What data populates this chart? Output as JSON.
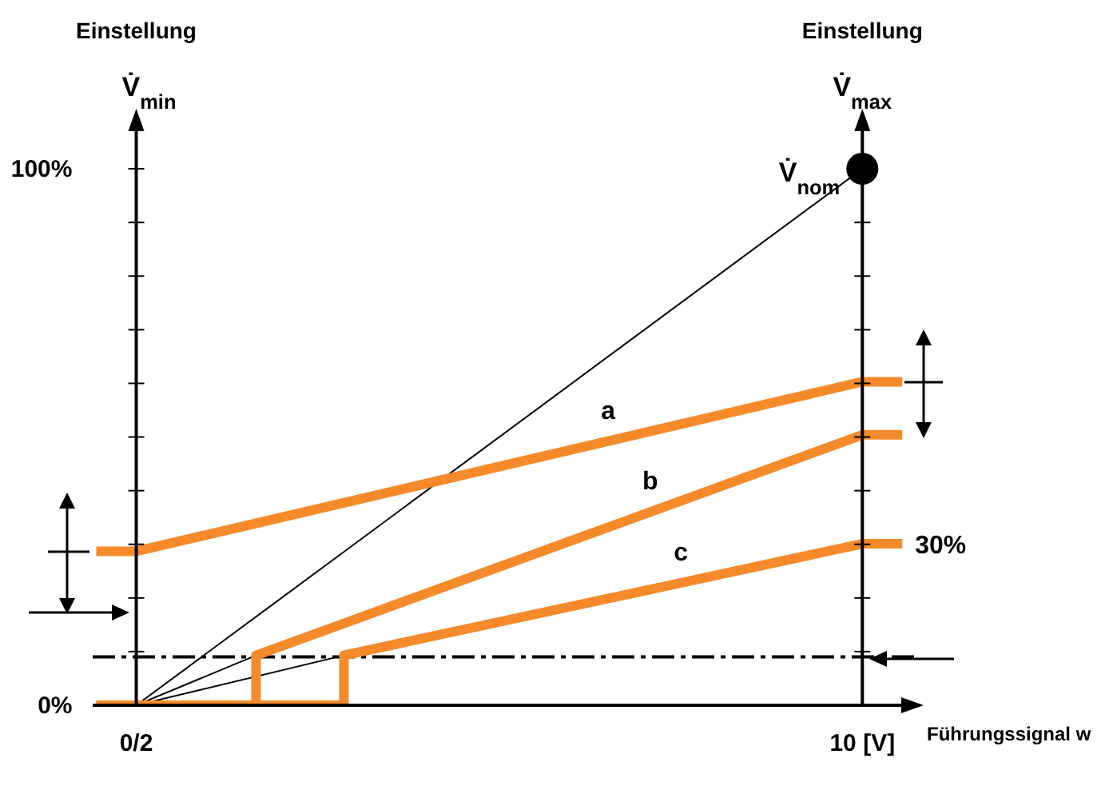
{
  "chart_data": {
    "type": "line",
    "ylabel": "Einstellung\nV̇$_{min}$",
    "y2label": "Einstellung\nV̇$_{max}$",
    "xlabel": "Führungssignal w",
    "xlim": [
      -0.6,
      10.8
    ],
    "xticks": [
      {
        "value": 0,
        "label": "0/2"
      },
      {
        "value": 10,
        "label": "10 [V]"
      }
    ],
    "ylim": [
      0,
      110
    ],
    "yticks": [
      {
        "value": 0,
        "label": "0%"
      },
      {
        "value": 10,
        "label": null
      },
      {
        "value": 20,
        "label": null
      },
      {
        "value": 30,
        "label": null
      },
      {
        "value": 40,
        "label": null
      },
      {
        "value": 50,
        "label": null
      },
      {
        "value": 60,
        "label": null
      },
      {
        "value": 70,
        "label": null
      },
      {
        "value": 80,
        "label": null
      },
      {
        "value": 90,
        "label": null
      },
      {
        "value": 100,
        "label": "100%"
      }
    ],
    "marker": "none",
    "line_style": "solid",
    "series": [
      {
        "color": "#000000",
        "x": [
          0,
          10
        ],
        "values": [
          0,
          100
        ]
      },
      {
        "color": "#000000",
        "x": [
          0,
          1.65
        ],
        "values": [
          0,
          9.3
        ]
      },
      {
        "color": "#000000",
        "x": [
          0,
          2.86
        ],
        "values": [
          0,
          9.3
        ]
      },
      {
        "name": "a",
        "color": "#f58a2a",
        "x": [
          -0.55,
          0,
          10,
          10.55
        ],
        "values": [
          28.7,
          28.7,
          60.3,
          60.3
        ]
      },
      {
        "name": "b",
        "color": "#f58a2a",
        "x": [
          -0.55,
          1.65,
          1.65,
          10,
          10.55
        ],
        "values": [
          0,
          0,
          9.3,
          50.4,
          50.4
        ]
      },
      {
        "name": "c",
        "color": "#f58a2a",
        "x": [
          -0.55,
          2.86,
          2.86,
          10,
          10.55
        ],
        "values": [
          0,
          0,
          9.3,
          30.1,
          30.1
        ]
      },
      {
        "type": "scatter",
        "marker": "circle",
        "color": "#000000",
        "x": [
          10
        ],
        "values": [
          100
        ]
      }
    ],
    "ref_lines": [
      {
        "axis": "y",
        "value": 9,
        "color": "#000000",
        "line_style": "dashed"
      }
    ],
    "annotations": [
      {
        "text": "V̇$_{nom}$",
        "x": 10,
        "y": 100
      },
      {
        "text": "30%",
        "x": 10.55,
        "y": 30.1
      }
    ]
  }
}
